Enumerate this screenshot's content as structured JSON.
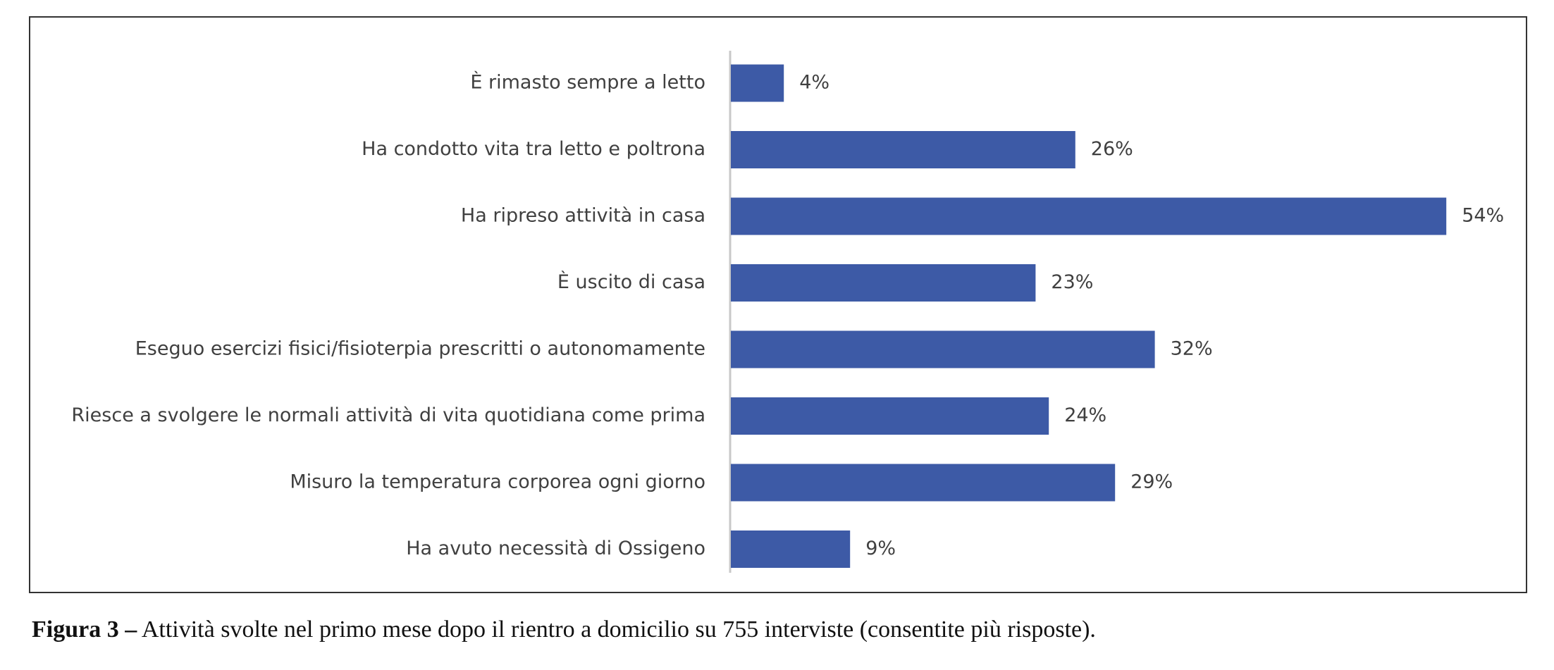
{
  "chart_data": {
    "type": "barh",
    "categories": [
      "È  rimasto sempre a letto",
      "Ha condotto vita tra letto e poltrona",
      "Ha ripreso attività in casa",
      "È  uscito di casa",
      "Eseguo esercizi fisici/fisioterpia prescritti o autonomamente",
      "Riesce a svolgere le normali attività di vita quotidiana come prima",
      "Misuro la temperatura corporea ogni giorno",
      "Ha avuto necessità di Ossigeno"
    ],
    "values": [
      4,
      26,
      54,
      23,
      32,
      24,
      29,
      9
    ],
    "value_labels": [
      "4%",
      "26%",
      "54%",
      "23%",
      "32%",
      "24%",
      "29%",
      "9%"
    ],
    "color": "#3d5aa6"
  },
  "caption": {
    "label": "Figura 3 –",
    "text": "Attività svolte nel primo mese dopo il rientro a domicilio su 755 interviste (consentite più risposte)."
  }
}
